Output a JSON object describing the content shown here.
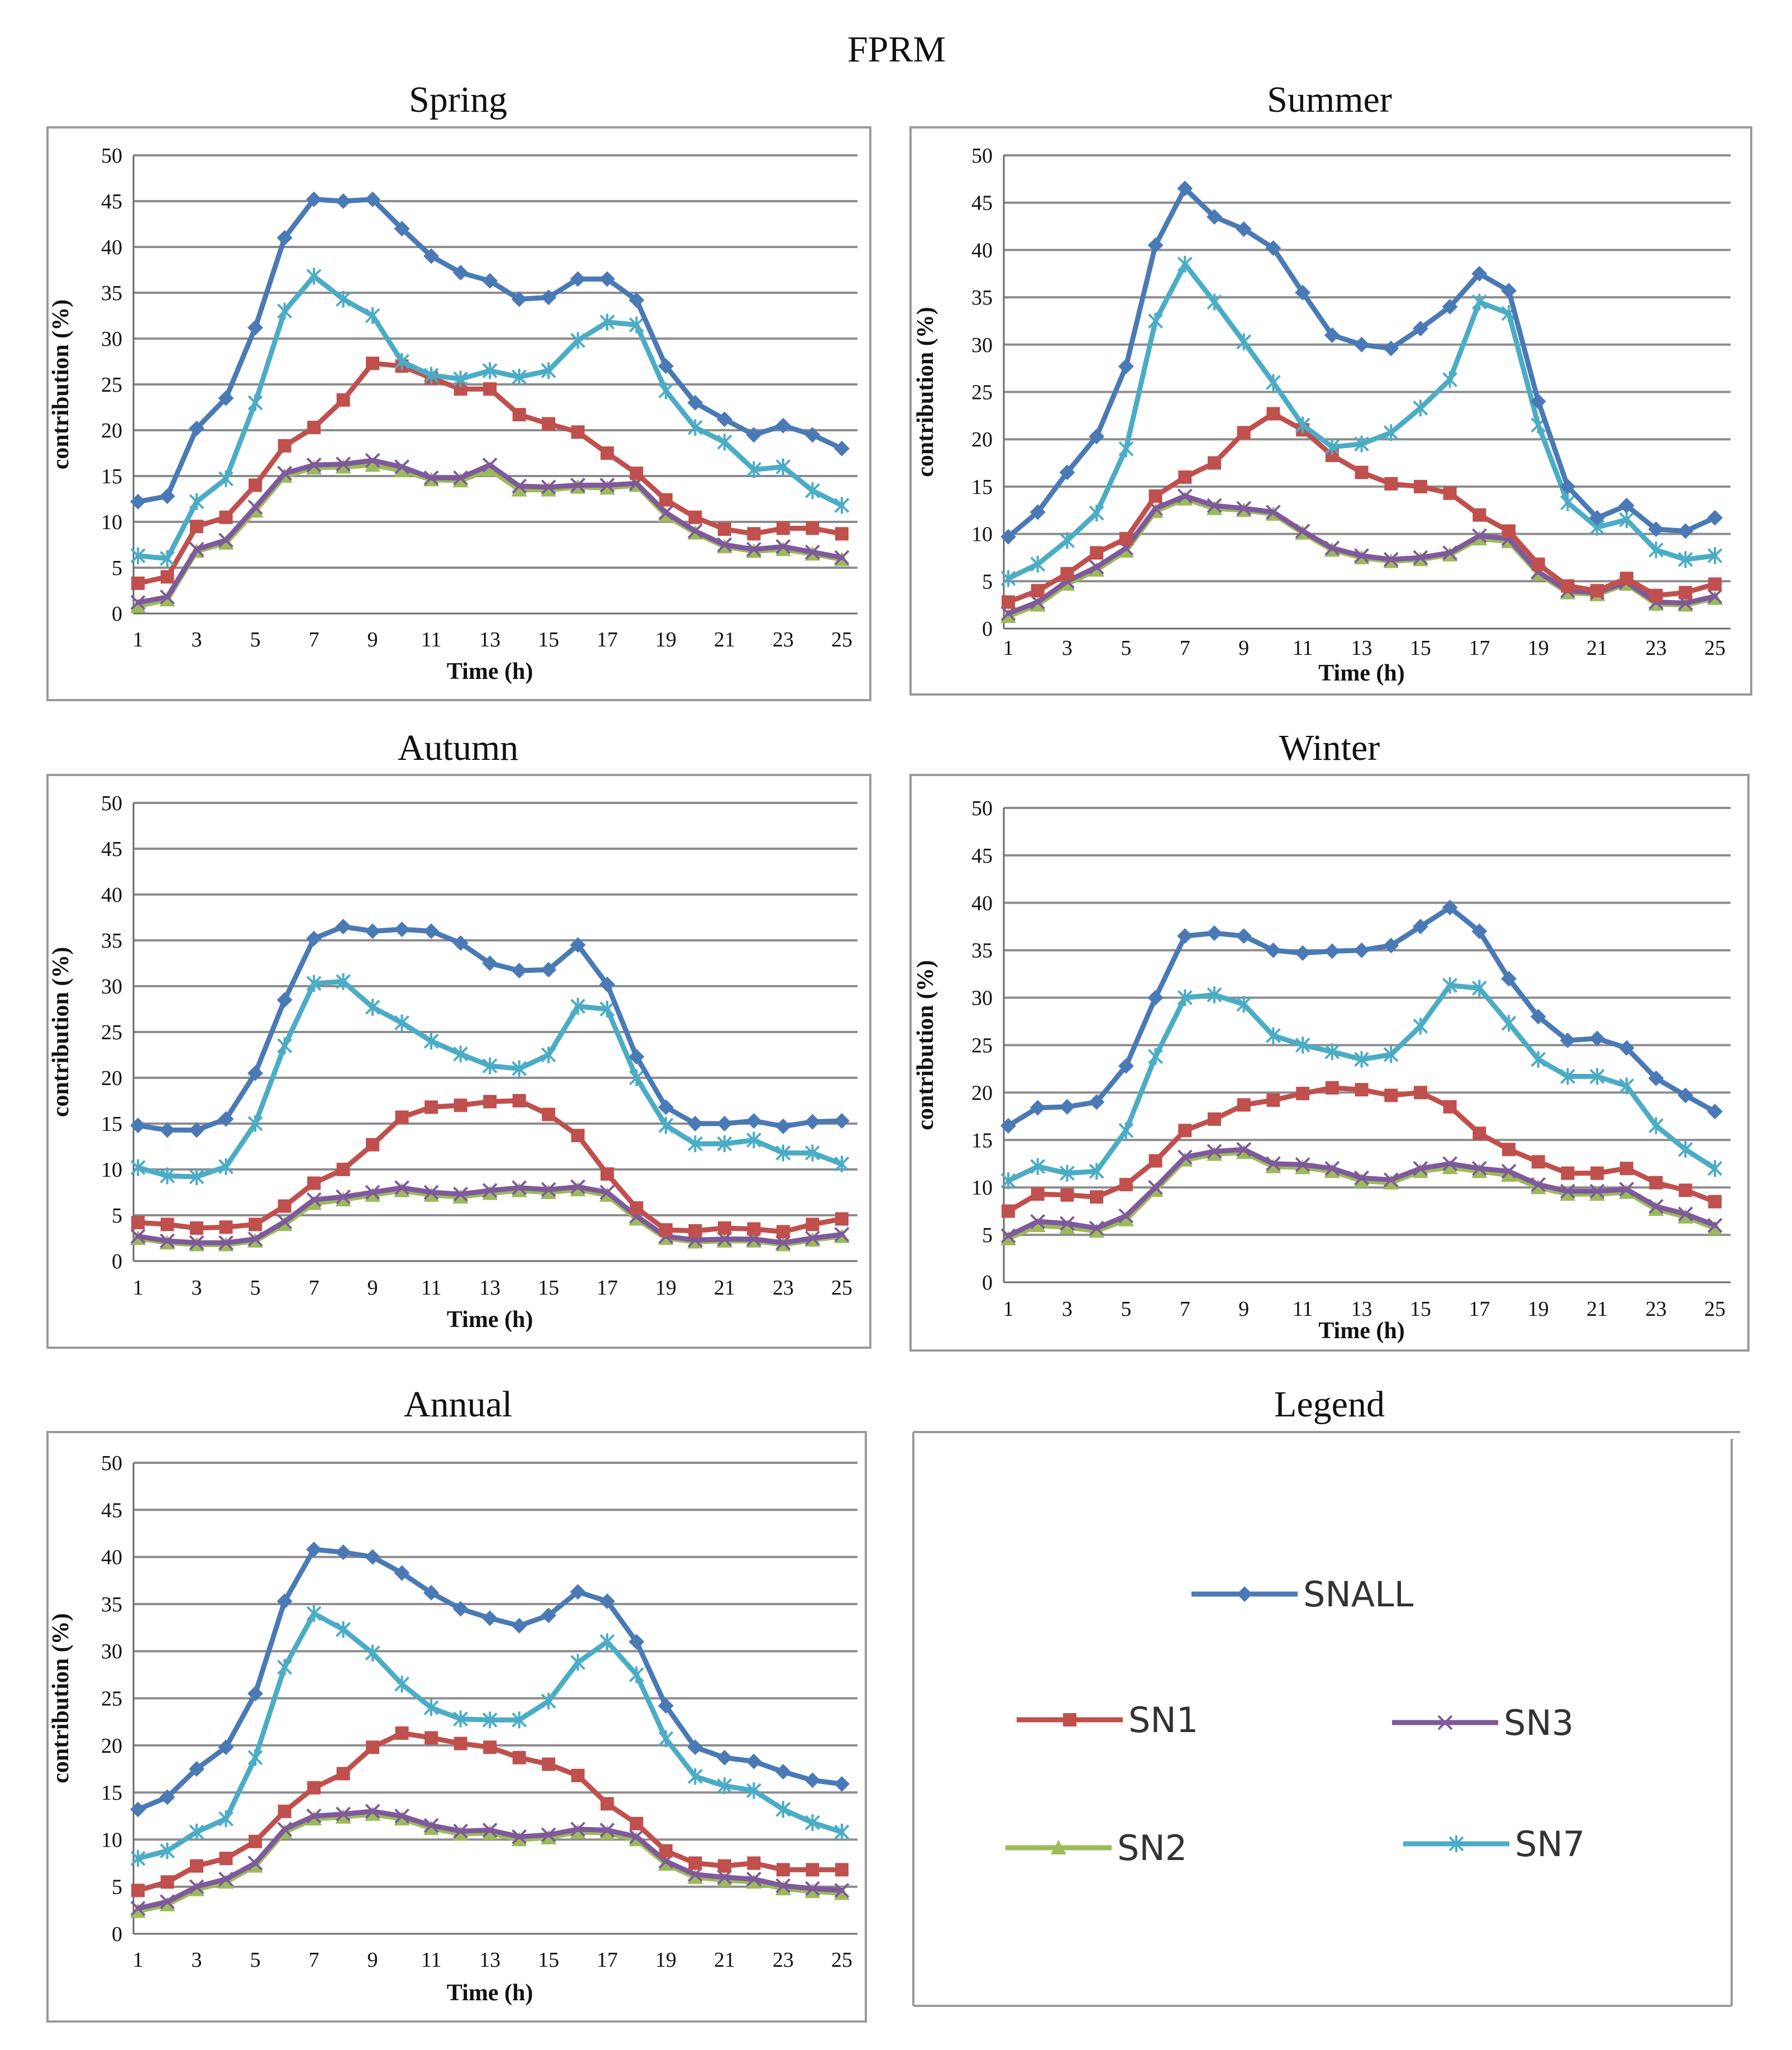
{
  "figure_title": "FPRM",
  "legend": {
    "title": "Legend",
    "items": [
      {
        "key": "SNALL",
        "label": "SNALL"
      },
      {
        "key": "SN1",
        "label": "SN1"
      },
      {
        "key": "SN3",
        "label": "SN3"
      },
      {
        "key": "SN2",
        "label": "SN2"
      },
      {
        "key": "SN7",
        "label": "SN7"
      }
    ]
  },
  "colors": {
    "SNALL": "#4a7ab5",
    "SN1": "#c0504d",
    "SN2": "#9bbb59",
    "SN3": "#7e5a9b",
    "SN7": "#4bacc6",
    "grid": "#8c8c8c",
    "frame": "#9a9a9a"
  },
  "markers": {
    "SNALL": "diamond",
    "SN1": "square",
    "SN2": "triangle",
    "SN3": "x",
    "SN7": "asterisk"
  },
  "chart_data": [
    {
      "type": "line",
      "title": "Spring",
      "xlabel": "Time (h)",
      "ylabel": "contribution (%)",
      "ylim": [
        0,
        50
      ],
      "yticks": [
        0,
        5,
        10,
        15,
        20,
        25,
        30,
        35,
        40,
        45,
        50
      ],
      "xticks": [
        1,
        3,
        5,
        7,
        9,
        11,
        13,
        15,
        17,
        19,
        21,
        23,
        25
      ],
      "x": [
        1,
        2,
        3,
        4,
        5,
        6,
        7,
        8,
        9,
        10,
        11,
        12,
        13,
        14,
        15,
        16,
        17,
        18,
        19,
        20,
        21,
        22,
        23,
        24,
        25
      ],
      "series": [
        {
          "name": "SNALL",
          "values": [
            12.2,
            12.8,
            20.2,
            23.5,
            31.2,
            41,
            45.2,
            45,
            45.2,
            42,
            39,
            37.2,
            36.3,
            34.3,
            34.5,
            36.5,
            36.5,
            34.2,
            27,
            23,
            21.2,
            19.5,
            20.5,
            19.5,
            18
          ]
        },
        {
          "name": "SN7",
          "values": [
            6.3,
            6,
            12.2,
            14.7,
            23,
            33,
            36.8,
            34.3,
            32.5,
            27.5,
            26,
            25.6,
            26.5,
            25.8,
            26.5,
            29.8,
            31.8,
            31.5,
            24.3,
            20.3,
            18.7,
            15.7,
            16,
            13.4,
            11.8
          ]
        },
        {
          "name": "SN1",
          "values": [
            3.3,
            4,
            9.5,
            10.5,
            14,
            18.3,
            20.3,
            23.3,
            27.3,
            27,
            25.7,
            24.5,
            24.5,
            21.7,
            20.7,
            19.8,
            17.5,
            15.3,
            12.4,
            10.5,
            9.2,
            8.7,
            9.3,
            9.3,
            8.7
          ]
        },
        {
          "name": "SN3",
          "values": [
            1.2,
            1.8,
            7,
            8,
            11.6,
            15.3,
            16.2,
            16.3,
            16.7,
            16,
            14.8,
            14.8,
            16.2,
            13.9,
            13.8,
            14,
            14,
            14.2,
            11,
            9,
            7.5,
            7,
            7.3,
            6.7,
            6.1
          ]
        },
        {
          "name": "SN2",
          "values": [
            0.8,
            1.5,
            6.8,
            7.7,
            11.2,
            15,
            15.9,
            16,
            16.2,
            15.6,
            14.6,
            14.5,
            15.7,
            13.5,
            13.5,
            13.8,
            13.7,
            14,
            10.7,
            8.8,
            7.3,
            6.8,
            7,
            6.5,
            5.9
          ]
        }
      ]
    },
    {
      "type": "line",
      "title": "Summer",
      "xlabel": "Time (h)",
      "ylabel": "contribution (%)",
      "ylim": [
        0,
        50
      ],
      "yticks": [
        0,
        5,
        10,
        15,
        20,
        25,
        30,
        35,
        40,
        45,
        50
      ],
      "xticks": [
        1,
        3,
        5,
        7,
        9,
        11,
        13,
        15,
        17,
        19,
        21,
        23,
        25
      ],
      "x": [
        1,
        2,
        3,
        4,
        5,
        6,
        7,
        8,
        9,
        10,
        11,
        12,
        13,
        14,
        15,
        16,
        17,
        18,
        19,
        20,
        21,
        22,
        23,
        24,
        25
      ],
      "series": [
        {
          "name": "SNALL",
          "values": [
            9.7,
            12.3,
            16.5,
            20.3,
            27.7,
            40.5,
            46.5,
            43.5,
            42.2,
            40.2,
            35.5,
            31,
            30,
            29.6,
            31.7,
            34,
            37.5,
            35.7,
            24,
            15,
            11.7,
            13,
            10.5,
            10.3,
            11.7
          ]
        },
        {
          "name": "SN7",
          "values": [
            5.3,
            6.8,
            9.3,
            12.2,
            19,
            32.5,
            38.5,
            34.5,
            30.3,
            26,
            21.5,
            19.2,
            19.5,
            20.7,
            23.3,
            26.3,
            34.5,
            33.3,
            21.5,
            13.3,
            10.7,
            11.5,
            8.3,
            7.3,
            7.7
          ]
        },
        {
          "name": "SN1",
          "values": [
            2.8,
            4,
            5.8,
            8,
            9.5,
            14,
            16,
            17.5,
            20.7,
            22.7,
            21,
            18.3,
            16.5,
            15.3,
            15,
            14.3,
            12,
            10.3,
            6.8,
            4.5,
            4,
            5.3,
            3.5,
            3.8,
            4.7
          ]
        },
        {
          "name": "SN3",
          "values": [
            1.6,
            2.8,
            5,
            6.5,
            8.5,
            12.7,
            14,
            13,
            12.7,
            12.3,
            10.3,
            8.5,
            7.7,
            7.3,
            7.5,
            8,
            9.8,
            9.5,
            6,
            4,
            3.8,
            4.9,
            2.8,
            2.7,
            3.4
          ]
        },
        {
          "name": "SN2",
          "values": [
            1.3,
            2.5,
            4.7,
            6.2,
            8.2,
            12.4,
            13.7,
            12.7,
            12.5,
            12.1,
            10.1,
            8.3,
            7.5,
            7.1,
            7.3,
            7.8,
            9.5,
            9.2,
            5.8,
            3.8,
            3.6,
            4.7,
            2.6,
            2.5,
            3.2
          ]
        }
      ]
    },
    {
      "type": "line",
      "title": "Autumn",
      "xlabel": "Time (h)",
      "ylabel": "contribution (%)",
      "ylim": [
        0,
        50
      ],
      "yticks": [
        0,
        5,
        10,
        15,
        20,
        25,
        30,
        35,
        40,
        45,
        50
      ],
      "xticks": [
        1,
        3,
        5,
        7,
        9,
        11,
        13,
        15,
        17,
        19,
        21,
        23,
        25
      ],
      "x": [
        1,
        2,
        3,
        4,
        5,
        6,
        7,
        8,
        9,
        10,
        11,
        12,
        13,
        14,
        15,
        16,
        17,
        18,
        19,
        20,
        21,
        22,
        23,
        24,
        25
      ],
      "series": [
        {
          "name": "SNALL",
          "values": [
            14.8,
            14.3,
            14.3,
            15.5,
            20.5,
            28.5,
            35.2,
            36.5,
            36,
            36.2,
            36,
            34.7,
            32.5,
            31.7,
            31.8,
            34.5,
            30.2,
            22.3,
            16.8,
            15,
            15,
            15.3,
            14.7,
            15.2,
            15.3
          ]
        },
        {
          "name": "SN7",
          "values": [
            10.2,
            9.3,
            9.2,
            10.3,
            15,
            23.5,
            30.3,
            30.5,
            27.7,
            26,
            24,
            22.6,
            21.3,
            21,
            22.5,
            27.8,
            27.5,
            20,
            14.8,
            12.8,
            12.8,
            13.2,
            11.8,
            11.8,
            10.6
          ]
        },
        {
          "name": "SN1",
          "values": [
            4.2,
            4,
            3.6,
            3.7,
            4,
            6,
            8.5,
            10,
            12.7,
            15.7,
            16.8,
            17,
            17.4,
            17.5,
            16,
            13.7,
            9.5,
            5.8,
            3.4,
            3.3,
            3.6,
            3.5,
            3.2,
            4,
            4.6
          ]
        },
        {
          "name": "SN3",
          "values": [
            2.7,
            2.2,
            2,
            2,
            2.4,
            4.3,
            6.7,
            7,
            7.5,
            8,
            7.5,
            7.3,
            7.7,
            8,
            7.8,
            8.1,
            7.5,
            4.9,
            2.7,
            2.3,
            2.4,
            2.4,
            2,
            2.5,
            2.9
          ]
        },
        {
          "name": "SN2",
          "values": [
            2.5,
            2,
            1.8,
            1.8,
            2.2,
            4,
            6.3,
            6.7,
            7.2,
            7.7,
            7.2,
            7,
            7.4,
            7.7,
            7.5,
            7.8,
            7.2,
            4.6,
            2.5,
            2.1,
            2.2,
            2.2,
            1.8,
            2.3,
            2.7
          ]
        }
      ]
    },
    {
      "type": "line",
      "title": "Winter",
      "xlabel": "Time (h)",
      "ylabel": "contribution (%)",
      "ylim": [
        0,
        50
      ],
      "yticks": [
        0,
        5,
        10,
        15,
        20,
        25,
        30,
        35,
        40,
        45,
        50
      ],
      "xticks": [
        1,
        3,
        5,
        7,
        9,
        11,
        13,
        15,
        17,
        19,
        21,
        23,
        25
      ],
      "x": [
        1,
        2,
        3,
        4,
        5,
        6,
        7,
        8,
        9,
        10,
        11,
        12,
        13,
        14,
        15,
        16,
        17,
        18,
        19,
        20,
        21,
        22,
        23,
        24,
        25
      ],
      "series": [
        {
          "name": "SNALL",
          "values": [
            16.5,
            18.4,
            18.5,
            19,
            22.8,
            30,
            36.5,
            36.8,
            36.5,
            35,
            34.7,
            34.9,
            35,
            35.5,
            37.5,
            39.5,
            37,
            32,
            28,
            25.5,
            25.7,
            24.7,
            21.5,
            19.7,
            18
          ]
        },
        {
          "name": "SN7",
          "values": [
            10.7,
            12.2,
            11.5,
            11.7,
            16,
            23.8,
            30,
            30.3,
            29.3,
            26,
            25,
            24.3,
            23.5,
            24,
            27,
            31.3,
            31,
            27.3,
            23.5,
            21.7,
            21.7,
            20.7,
            16.5,
            14,
            12
          ]
        },
        {
          "name": "SN1",
          "values": [
            7.5,
            9.3,
            9.2,
            9,
            10.3,
            12.8,
            16,
            17.2,
            18.7,
            19.2,
            19.9,
            20.5,
            20.3,
            19.7,
            20,
            18.5,
            15.7,
            14,
            12.7,
            11.5,
            11.5,
            12,
            10.5,
            9.7,
            8.5
          ]
        },
        {
          "name": "SN3",
          "values": [
            4.9,
            6.4,
            6.2,
            5.7,
            7,
            10,
            13.2,
            13.8,
            14,
            12.5,
            12.4,
            12,
            11,
            10.8,
            12,
            12.5,
            12,
            11.7,
            10.3,
            9.6,
            9.6,
            9.8,
            8,
            7.2,
            6
          ]
        },
        {
          "name": "SN2",
          "values": [
            4.6,
            6,
            5.8,
            5.4,
            6.6,
            9.7,
            12.9,
            13.5,
            13.7,
            12.2,
            12.1,
            11.7,
            10.7,
            10.5,
            11.7,
            12.1,
            11.7,
            11.3,
            10,
            9.3,
            9.3,
            9.5,
            7.7,
            6.9,
            5.7
          ]
        }
      ]
    },
    {
      "type": "line",
      "title": "Annual",
      "xlabel": "Time (h)",
      "ylabel": "contribution (%)",
      "ylim": [
        0,
        50
      ],
      "yticks": [
        0,
        5,
        10,
        15,
        20,
        25,
        30,
        35,
        40,
        45,
        50
      ],
      "xticks": [
        1,
        3,
        5,
        7,
        9,
        11,
        13,
        15,
        17,
        19,
        21,
        23,
        25
      ],
      "x": [
        1,
        2,
        3,
        4,
        5,
        6,
        7,
        8,
        9,
        10,
        11,
        12,
        13,
        14,
        15,
        16,
        17,
        18,
        19,
        20,
        21,
        22,
        23,
        24,
        25
      ],
      "series": [
        {
          "name": "SNALL",
          "values": [
            13.2,
            14.5,
            17.5,
            19.8,
            25.5,
            35.3,
            40.8,
            40.5,
            40,
            38.3,
            36.2,
            34.5,
            33.5,
            32.7,
            33.8,
            36.3,
            35.3,
            31,
            24.2,
            19.8,
            18.7,
            18.3,
            17.2,
            16.3,
            15.9
          ]
        },
        {
          "name": "SN7",
          "values": [
            8,
            8.8,
            10.8,
            12.2,
            18.7,
            28.3,
            34,
            32.3,
            29.8,
            26.5,
            24,
            22.8,
            22.7,
            22.7,
            24.7,
            28.8,
            31,
            27.5,
            20.7,
            16.7,
            15.7,
            15.2,
            13.2,
            11.8,
            10.8
          ]
        },
        {
          "name": "SN1",
          "values": [
            4.6,
            5.5,
            7.2,
            8,
            9.8,
            13,
            15.5,
            17,
            19.8,
            21.3,
            20.8,
            20.2,
            19.8,
            18.7,
            18,
            16.8,
            13.8,
            11.7,
            8.8,
            7.5,
            7.2,
            7.5,
            6.8,
            6.8,
            6.8
          ]
        },
        {
          "name": "SN3",
          "values": [
            2.7,
            3.4,
            5,
            5.8,
            7.5,
            11.1,
            12.5,
            12.7,
            13,
            12.5,
            11.5,
            10.9,
            11,
            10.3,
            10.5,
            11.1,
            11,
            10.3,
            7.7,
            6.3,
            6,
            5.8,
            5.1,
            4.8,
            4.6
          ]
        },
        {
          "name": "SN2",
          "values": [
            2.4,
            3.1,
            4.7,
            5.5,
            7.2,
            10.8,
            12.2,
            12.4,
            12.7,
            12.2,
            11.2,
            10.6,
            10.7,
            10,
            10.2,
            10.8,
            10.7,
            10,
            7.4,
            6,
            5.7,
            5.5,
            4.8,
            4.5,
            4.3
          ]
        }
      ]
    }
  ]
}
